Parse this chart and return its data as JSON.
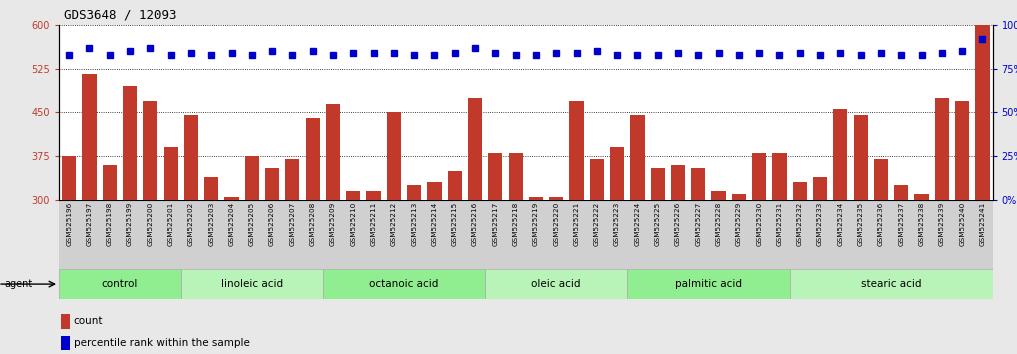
{
  "title": "GDS3648 / 12093",
  "samples": [
    "GSM525196",
    "GSM525197",
    "GSM525198",
    "GSM525199",
    "GSM525200",
    "GSM525201",
    "GSM525202",
    "GSM525203",
    "GSM525204",
    "GSM525205",
    "GSM525206",
    "GSM525207",
    "GSM525208",
    "GSM525209",
    "GSM525210",
    "GSM525211",
    "GSM525212",
    "GSM525213",
    "GSM525214",
    "GSM525215",
    "GSM525216",
    "GSM525217",
    "GSM525218",
    "GSM525219",
    "GSM525220",
    "GSM525221",
    "GSM525222",
    "GSM525223",
    "GSM525224",
    "GSM525225",
    "GSM525226",
    "GSM525227",
    "GSM525228",
    "GSM525229",
    "GSM525230",
    "GSM525231",
    "GSM525232",
    "GSM525233",
    "GSM525234",
    "GSM525235",
    "GSM525236",
    "GSM525237",
    "GSM525238",
    "GSM525239",
    "GSM525240",
    "GSM525241"
  ],
  "counts": [
    375,
    515,
    360,
    495,
    470,
    390,
    445,
    340,
    305,
    375,
    355,
    370,
    440,
    465,
    315,
    315,
    450,
    325,
    330,
    350,
    475,
    380,
    380,
    305,
    305,
    470,
    370,
    390,
    445,
    355,
    360,
    355,
    315,
    310,
    380,
    380,
    330,
    340,
    455,
    445,
    370,
    325,
    310,
    475,
    470,
    600
  ],
  "percentiles": [
    83,
    87,
    83,
    85,
    87,
    83,
    84,
    83,
    84,
    83,
    85,
    83,
    85,
    83,
    84,
    84,
    84,
    83,
    83,
    84,
    87,
    84,
    83,
    83,
    84,
    84,
    85,
    83,
    83,
    83,
    84,
    83,
    84,
    83,
    84,
    83,
    84,
    83,
    84,
    83,
    84,
    83,
    83,
    84,
    85,
    92
  ],
  "bar_color": "#c0392b",
  "dot_color": "#0000cc",
  "ylim_left": [
    300,
    600
  ],
  "ylim_right": [
    0,
    100
  ],
  "yticks_left": [
    300,
    375,
    450,
    525,
    600
  ],
  "yticks_right": [
    0,
    25,
    50,
    75,
    100
  ],
  "groups": [
    {
      "label": "control",
      "start": 0,
      "end": 6,
      "color": "#90ee90"
    },
    {
      "label": "linoleic acid",
      "start": 6,
      "end": 13,
      "color": "#b8f4b8"
    },
    {
      "label": "octanoic acid",
      "start": 13,
      "end": 21,
      "color": "#90ee90"
    },
    {
      "label": "oleic acid",
      "start": 21,
      "end": 28,
      "color": "#b8f4b8"
    },
    {
      "label": "palmitic acid",
      "start": 28,
      "end": 36,
      "color": "#90ee90"
    },
    {
      "label": "stearic acid",
      "start": 36,
      "end": 46,
      "color": "#b8f4b8"
    }
  ],
  "bg_color": "#e8e8e8",
  "plot_bg": "#ffffff",
  "xtick_bg": "#d0d0d0",
  "agent_label": "agent",
  "legend_count_label": "count",
  "legend_pct_label": "percentile rank within the sample"
}
